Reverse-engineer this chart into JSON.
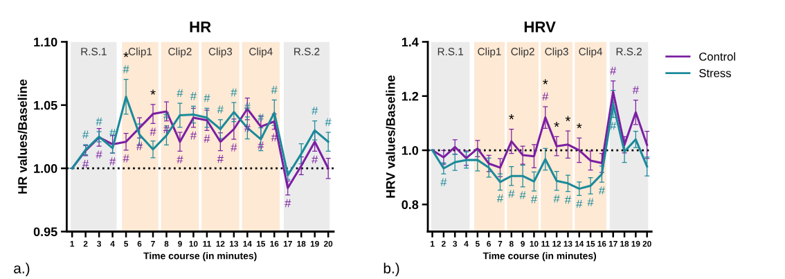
{
  "chart_data": [
    {
      "type": "line",
      "title": "HR",
      "xlabel": "Time course (in minutes)",
      "ylabel": "HR values/Baseline",
      "x": [
        1,
        2,
        3,
        4,
        5,
        6,
        7,
        8,
        9,
        10,
        11,
        12,
        13,
        14,
        15,
        16,
        17,
        18,
        19,
        20
      ],
      "xlim": [
        0.6,
        20.4
      ],
      "xticks": [
        1,
        2,
        3,
        4,
        5,
        6,
        7,
        8,
        9,
        10,
        11,
        12,
        13,
        14,
        15,
        16,
        17,
        18,
        19,
        20
      ],
      "ylim": [
        0.95,
        1.1
      ],
      "yticks": [
        {
          "value": 0.95,
          "label": "0.95"
        },
        {
          "value": 1.0,
          "label": "1.00"
        },
        {
          "value": 1.05,
          "label": "1.05"
        },
        {
          "value": 1.1,
          "label": "1.10"
        }
      ],
      "grid": false,
      "legend": false,
      "marker": "none",
      "line_style": "solid",
      "series": [
        {
          "color": "#7b1fa2",
          "values": [
            1.0,
            1.014,
            1.0245,
            1.019,
            1.021,
            1.032,
            1.043,
            1.045,
            1.021,
            1.04,
            1.038,
            1.021,
            1.031,
            1.047,
            1.033,
            1.037,
            0.9845,
            1.002,
            1.021,
            1.0
          ],
          "errors": [
            0,
            0.004,
            0.007,
            0.007,
            0.0066,
            0.008,
            0.0075,
            0.0075,
            0.0075,
            0.0075,
            0.008,
            0.007,
            0.008,
            0.0085,
            0.0085,
            0.006,
            0.0055,
            0.007,
            0.0075,
            0.008
          ],
          "value_labels": [
            null,
            "#",
            "#",
            "#",
            "#",
            "#",
            "#",
            "#",
            "#",
            "#",
            "#",
            "#",
            "#",
            "#",
            "#",
            "#",
            "#",
            null,
            "#",
            null
          ]
        },
        {
          "color": "#1a8a9a",
          "values": [
            1.0,
            1.0147,
            1.025,
            1.016,
            1.0566,
            1.0266,
            1.015,
            1.026,
            1.042,
            1.0425,
            1.04,
            1.031,
            1.0445,
            1.032,
            1.023,
            1.044,
            0.9945,
            1.0115,
            1.03,
            1.021
          ],
          "errors": [
            0,
            0.004,
            0.004,
            0.004,
            0.0137,
            0.0085,
            0.0066,
            0.0075,
            0.0095,
            0.0066,
            0.0075,
            0.0075,
            0.0075,
            0.0087,
            0.009,
            0.01,
            0.0033,
            0.008,
            0.0075,
            0.0075
          ],
          "value_labels": [
            null,
            "#",
            "#",
            "#",
            "#",
            null,
            null,
            "#",
            "#",
            "#",
            "#",
            "#",
            "#",
            "#",
            "#",
            "#",
            null,
            null,
            "#",
            "#"
          ]
        }
      ],
      "ref_lines": [
        {
          "axis": "y",
          "value": 1.0,
          "color": "#000000",
          "line_style": "dotted"
        }
      ],
      "bands": [
        {
          "axis": "x",
          "from": 0.9,
          "to": 4.3,
          "label": "R.S.1",
          "color": "#ebebeb"
        },
        {
          "axis": "x",
          "from": 4.7,
          "to": 7.4,
          "label": "Clip1",
          "color": "#fde9d4"
        },
        {
          "axis": "x",
          "from": 7.6,
          "to": 10.4,
          "label": "Clip2",
          "color": "#fde9d4"
        },
        {
          "axis": "x",
          "from": 10.6,
          "to": 13.4,
          "label": "Clip3",
          "color": "#fde9d4"
        },
        {
          "axis": "x",
          "from": 13.6,
          "to": 16.4,
          "label": "Clip4",
          "color": "#fde9d4"
        },
        {
          "axis": "x",
          "from": 16.7,
          "to": 20.1,
          "label": "R.S.2",
          "color": "#ebebeb"
        }
      ],
      "annotations": [
        "a.)",
        {
          "text": "*",
          "x": 5,
          "y": 1.0566
        },
        {
          "text": "*",
          "x": 7,
          "y": 1.043
        }
      ]
    },
    {
      "type": "line",
      "title": "HRV",
      "xlabel": "Time course (in minutes)",
      "ylabel": "HRV values/Baseline",
      "x": [
        1,
        2,
        3,
        4,
        5,
        6,
        7,
        8,
        9,
        10,
        11,
        12,
        13,
        14,
        15,
        16,
        17,
        18,
        19,
        20
      ],
      "xlim": [
        0.6,
        20.4
      ],
      "xticks": [
        1,
        2,
        3,
        4,
        5,
        6,
        7,
        8,
        9,
        10,
        11,
        12,
        13,
        14,
        15,
        16,
        17,
        18,
        19,
        20
      ],
      "ylim": [
        0.7,
        1.4
      ],
      "yticks": [
        {
          "value": 0.8,
          "label": "0.8"
        },
        {
          "value": 1.0,
          "label": "1.0"
        },
        {
          "value": 1.2,
          "label": "1.2"
        },
        {
          "value": 1.4,
          "label": "1.4"
        }
      ],
      "grid": false,
      "legend": "right",
      "marker": "none",
      "line_style": "solid",
      "series": [
        {
          "name": "Control",
          "color": "#7b1fa2",
          "values": [
            1.0,
            0.974,
            1.012,
            0.971,
            1.006,
            0.951,
            0.936,
            1.033,
            0.982,
            0.978,
            1.121,
            1.015,
            1.021,
            1.0,
            0.962,
            0.953,
            1.216,
            1.02,
            1.14,
            1.02
          ],
          "errors": [
            0,
            0.025,
            0.027,
            0.027,
            0.03,
            0.03,
            0.033,
            0.045,
            0.033,
            0.043,
            0.04,
            0.035,
            0.05,
            0.045,
            0.035,
            0.035,
            0.04,
            0.03,
            0.045,
            0.05
          ],
          "value_labels": [
            null,
            null,
            null,
            null,
            null,
            null,
            null,
            null,
            null,
            null,
            "#",
            null,
            null,
            null,
            null,
            null,
            "#",
            null,
            "#",
            null
          ]
        },
        {
          "name": "Stress",
          "color": "#1a8a9a",
          "values": [
            1.0,
            0.933,
            0.956,
            0.964,
            0.964,
            0.936,
            0.883,
            0.905,
            0.905,
            0.885,
            0.967,
            0.887,
            0.878,
            0.858,
            0.869,
            0.912,
            1.171,
            0.995,
            1.04,
            0.94
          ],
          "errors": [
            0,
            0.02,
            0.03,
            0.03,
            0.04,
            0.035,
            0.03,
            0.035,
            0.04,
            0.035,
            0.04,
            0.035,
            0.03,
            0.025,
            0.03,
            0.03,
            0.05,
            0.04,
            0.03,
            0.035
          ],
          "value_labels": [
            null,
            "#",
            null,
            null,
            null,
            null,
            "#",
            "#",
            "#",
            "#",
            null,
            "#",
            "#",
            "#",
            "#",
            "#",
            "#",
            null,
            null,
            null
          ]
        }
      ],
      "ref_lines": [
        {
          "axis": "y",
          "value": 1.0,
          "color": "#000000",
          "line_style": "dotted"
        }
      ],
      "bands": [
        {
          "axis": "x",
          "from": 0.9,
          "to": 4.3,
          "label": "R.S.1",
          "color": "#ebebeb"
        },
        {
          "axis": "x",
          "from": 4.7,
          "to": 7.4,
          "label": "Clip1",
          "color": "#fde9d4"
        },
        {
          "axis": "x",
          "from": 7.6,
          "to": 10.4,
          "label": "Clip2",
          "color": "#fde9d4"
        },
        {
          "axis": "x",
          "from": 10.6,
          "to": 13.4,
          "label": "Clip3",
          "color": "#fde9d4"
        },
        {
          "axis": "x",
          "from": 13.6,
          "to": 16.4,
          "label": "Clip4",
          "color": "#fde9d4"
        },
        {
          "axis": "x",
          "from": 16.7,
          "to": 20.1,
          "label": "R.S.2",
          "color": "#ebebeb"
        }
      ],
      "annotations": [
        "b.)",
        {
          "text": "*",
          "x": 8,
          "y": 1.033
        },
        {
          "text": "*",
          "x": 11,
          "y": 1.121
        },
        {
          "text": "*",
          "x": 12,
          "y": 1.015
        },
        {
          "text": "*",
          "x": 13,
          "y": 1.021
        },
        {
          "text": "*",
          "x": 14,
          "y": 1.0
        }
      ]
    }
  ]
}
